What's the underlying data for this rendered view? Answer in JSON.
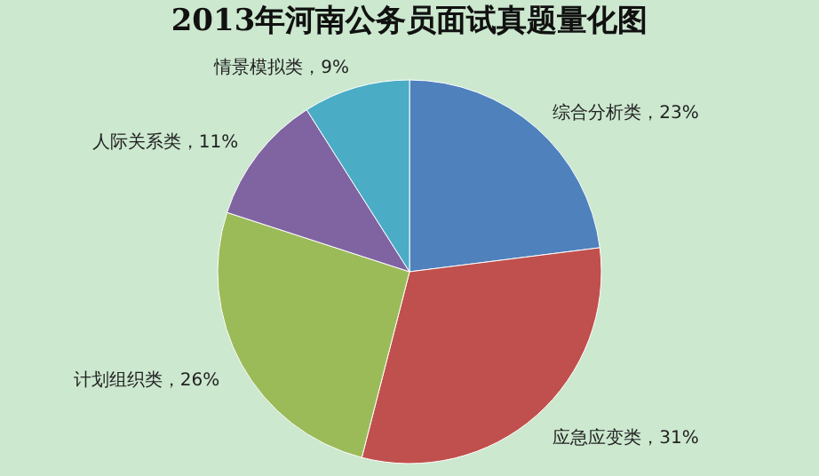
{
  "chart_data": {
    "type": "pie",
    "title": "2013年河南公务员面试真题量化图",
    "categories": [
      "综合分析类",
      "应急应变类",
      "计划组织类",
      "人际关系类",
      "情景模拟类"
    ],
    "values": [
      23,
      31,
      26,
      11,
      9
    ],
    "value_labels": [
      "23%",
      "31%",
      "26%",
      "11%",
      "9%"
    ],
    "colors": [
      "#4f81bd",
      "#c0504d",
      "#9bbb59",
      "#8064a2",
      "#4bacc6"
    ],
    "legend": false
  }
}
